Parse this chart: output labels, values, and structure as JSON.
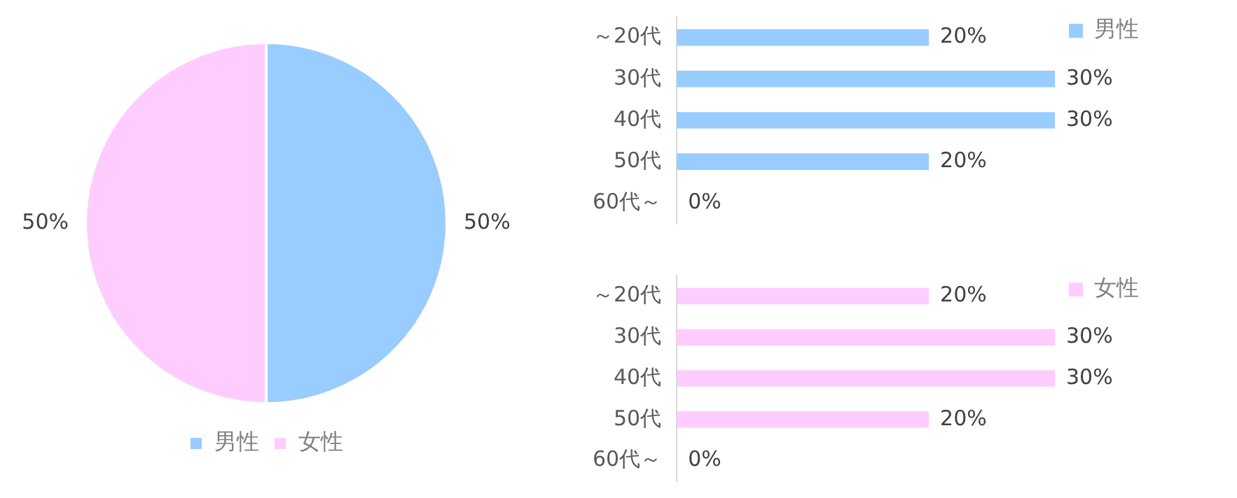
{
  "chart_data": [
    {
      "type": "pie",
      "categories": [
        "男性",
        "女性"
      ],
      "values": [
        50,
        50
      ],
      "colors": [
        "#99ccff",
        "#ffccff"
      ],
      "value_labels": [
        "50%",
        "50%"
      ],
      "legend": "bottom"
    },
    {
      "type": "bar",
      "orientation": "horizontal",
      "categories": [
        "～20代",
        "30代",
        "40代",
        "50代",
        "60代～"
      ],
      "legend": "top right",
      "series": [
        {
          "name": "男性",
          "color": "#99ccff",
          "values": [
            20,
            30,
            30,
            20,
            0
          ],
          "value_labels": [
            "20%",
            "30%",
            "30%",
            "20%",
            "0%"
          ]
        }
      ]
    },
    {
      "type": "bar",
      "orientation": "horizontal",
      "categories": [
        "～20代",
        "30代",
        "40代",
        "50代",
        "60代～"
      ],
      "legend": "top right",
      "series": [
        {
          "name": "女性",
          "color": "#ffccff",
          "values": [
            20,
            30,
            30,
            20,
            0
          ],
          "value_labels": [
            "20%",
            "30%",
            "30%",
            "20%",
            "0%"
          ]
        }
      ]
    }
  ]
}
